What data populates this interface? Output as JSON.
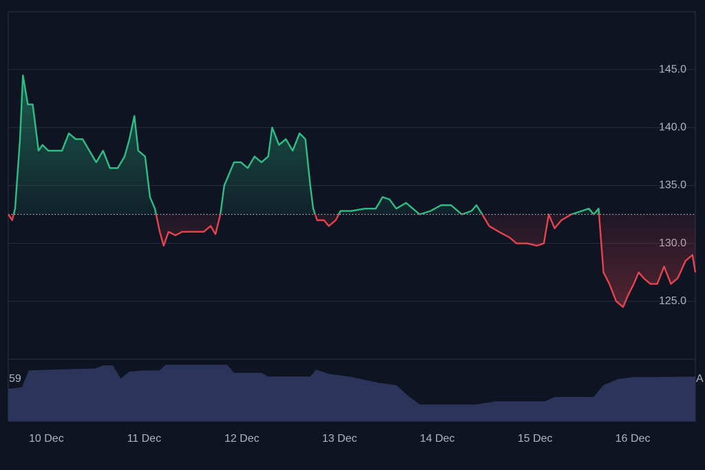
{
  "chart_data": {
    "type": "baseline",
    "x": [
      -0.39,
      -0.35,
      -0.32,
      -0.27,
      -0.24,
      -0.19,
      -0.14,
      -0.08,
      -0.04,
      0.02,
      0.09,
      0.16,
      0.23,
      0.3,
      0.37,
      0.44,
      0.51,
      0.58,
      0.65,
      0.73,
      0.8,
      0.85,
      0.9,
      0.94,
      1.01,
      1.06,
      1.11,
      1.16,
      1.2,
      1.25,
      1.32,
      1.39,
      1.5,
      1.61,
      1.68,
      1.73,
      1.78,
      1.82,
      1.87,
      1.92,
      1.99,
      2.06,
      2.13,
      2.2,
      2.27,
      2.31,
      2.38,
      2.45,
      2.52,
      2.59,
      2.65,
      2.7,
      2.73,
      2.77,
      2.84,
      2.89,
      2.96,
      3.01,
      3.12,
      3.26,
      3.37,
      3.44,
      3.51,
      3.58,
      3.68,
      3.75,
      3.82,
      3.93,
      4.04,
      4.14,
      4.25,
      4.35,
      4.4,
      4.46,
      4.53,
      4.63,
      4.74,
      4.81,
      4.92,
      5.02,
      5.09,
      5.14,
      5.2,
      5.27,
      5.37,
      5.48,
      5.55,
      5.6,
      5.65,
      5.7,
      5.76,
      5.83,
      5.9,
      5.95,
      6.01,
      6.06,
      6.11,
      6.18,
      6.25,
      6.32,
      6.39,
      6.46,
      6.54,
      6.61,
      6.64
    ],
    "values": [
      132.5,
      132,
      133,
      139,
      144.5,
      142,
      142,
      138,
      138.5,
      138,
      138,
      138,
      139.5,
      139,
      139,
      138,
      137,
      138,
      136.5,
      136.5,
      137.5,
      139,
      141,
      138,
      137.5,
      134,
      133,
      131,
      129.8,
      131,
      130.7,
      131,
      131,
      131,
      131.5,
      130.8,
      132.5,
      135,
      136,
      137,
      137,
      136.5,
      137.5,
      137,
      137.5,
      140,
      138.5,
      139,
      138,
      139.5,
      139,
      135,
      133,
      132,
      132,
      131.5,
      132,
      132.8,
      132.8,
      133,
      133,
      134,
      133.8,
      133,
      133.5,
      133,
      132.5,
      132.8,
      133.3,
      133.3,
      132.5,
      132.8,
      133.3,
      132.5,
      131.5,
      131,
      130.5,
      130,
      130,
      129.8,
      130,
      132.5,
      131.3,
      132,
      132.5,
      132.8,
      133,
      132.5,
      133,
      127.5,
      126.5,
      125,
      124.5,
      125.5,
      126.5,
      127.5,
      127,
      126.5,
      126.5,
      128,
      126.5,
      127,
      128.5,
      129,
      127.5
    ],
    "baseline": 132.5,
    "up_color": "#2ebd85",
    "down_color": "#e5434f",
    "xlim": [
      -0.39,
      6.64
    ],
    "xticks": [
      {
        "value": 0,
        "label": "10 Dec"
      },
      {
        "value": 1,
        "label": "11 Dec"
      },
      {
        "value": 2,
        "label": "12 Dec"
      },
      {
        "value": 3,
        "label": "13 Dec"
      },
      {
        "value": 4,
        "label": "14 Dec"
      },
      {
        "value": 5,
        "label": "15 Dec"
      },
      {
        "value": 6,
        "label": "16 Dec"
      }
    ],
    "ylim": [
      120,
      150
    ],
    "yticks": [
      {
        "value": 125,
        "label": "125.0"
      },
      {
        "value": 130,
        "label": "130.0"
      },
      {
        "value": 135,
        "label": "135.0"
      },
      {
        "value": 140,
        "label": "140.0"
      },
      {
        "value": 145,
        "label": "145.0"
      }
    ],
    "grid": true,
    "volume": {
      "color": "#2b355a",
      "x": [
        -0.39,
        -0.25,
        -0.18,
        0.5,
        0.58,
        0.68,
        0.76,
        0.85,
        1.0,
        1.16,
        1.22,
        1.85,
        1.92,
        2.2,
        2.27,
        2.7,
        2.76,
        2.9,
        3.1,
        3.4,
        3.58,
        3.7,
        3.82,
        4.4,
        4.6,
        5.1,
        5.2,
        5.6,
        5.7,
        5.85,
        6.0,
        6.64
      ],
      "values": [
        52,
        55,
        82,
        85,
        90,
        90,
        69,
        80,
        82,
        82,
        91,
        91,
        78,
        78,
        72,
        72,
        83,
        76,
        72,
        62,
        58,
        41,
        27,
        27,
        32,
        32,
        39,
        39,
        58,
        68,
        71,
        72
      ],
      "vlim": [
        0,
        100
      ],
      "left_label": "59",
      "right_label": "A"
    }
  }
}
